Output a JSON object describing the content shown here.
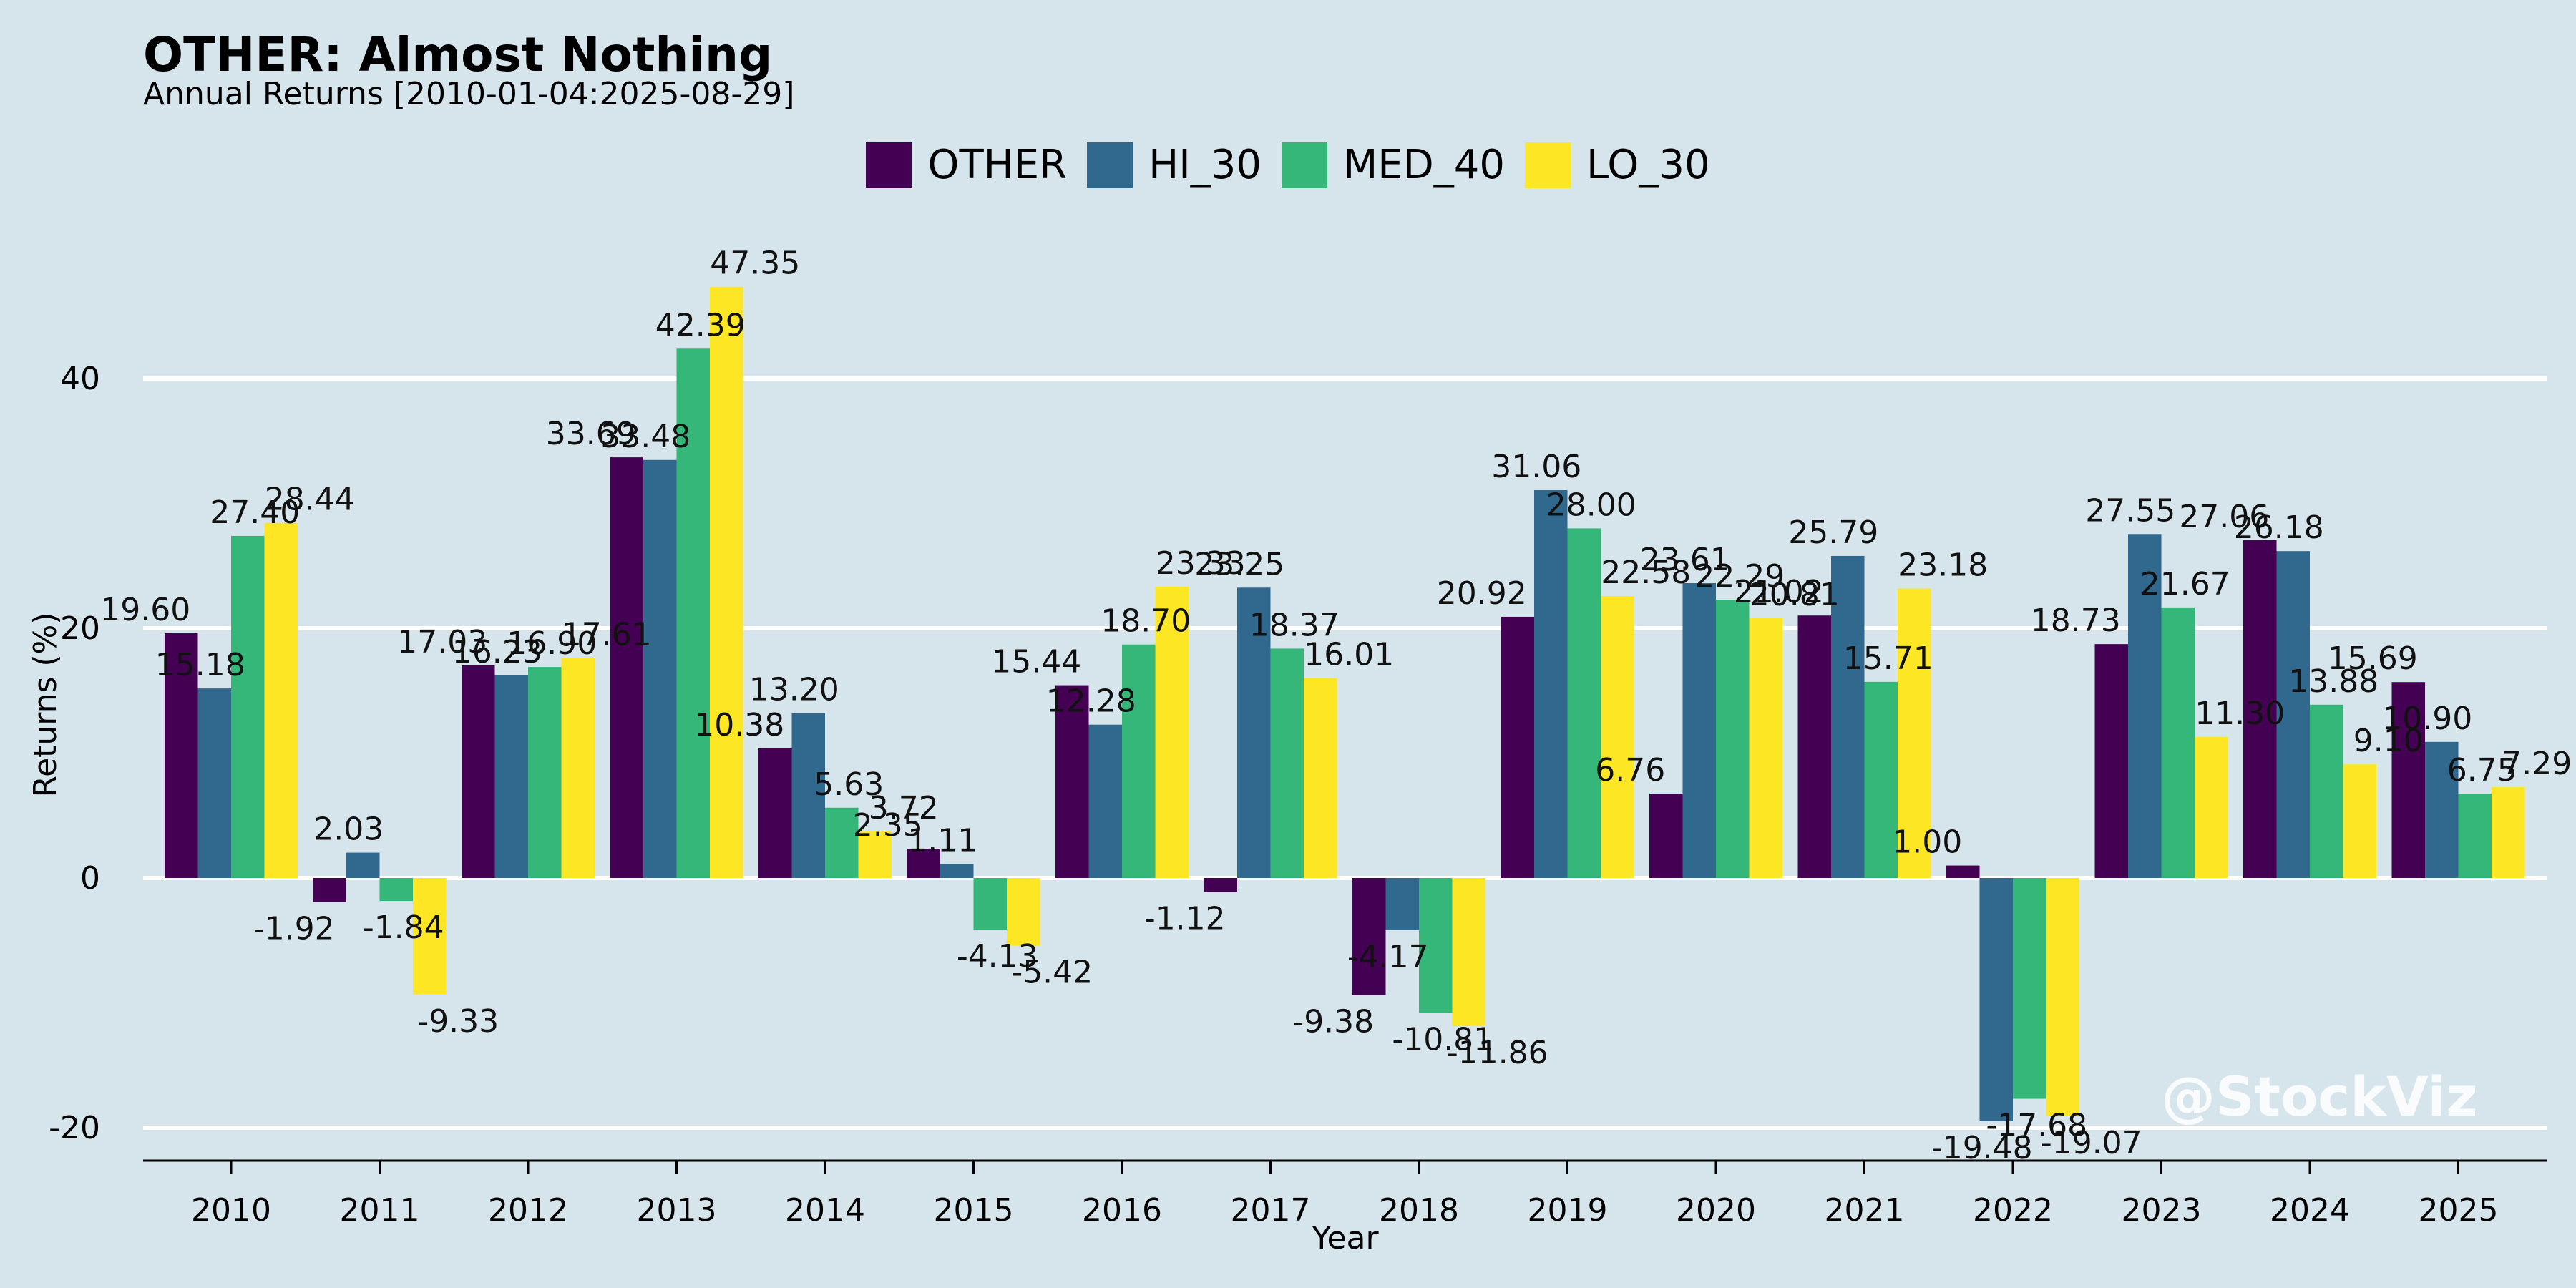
{
  "title": "OTHER: Almost Nothing",
  "subtitle": "Annual Returns [2010-01-04:2025-08-29]",
  "watermark": "@StockViz",
  "chart_data": {
    "type": "bar",
    "xlabel": "Year",
    "ylabel": "Returns (%)",
    "ylim": [
      -23,
      55
    ],
    "yticks": [
      -20,
      0,
      20,
      40
    ],
    "grid": true,
    "legend_position": "top-center",
    "categories": [
      "2010",
      "2011",
      "2012",
      "2013",
      "2014",
      "2015",
      "2016",
      "2017",
      "2018",
      "2019",
      "2020",
      "2021",
      "2022",
      "2023",
      "2024",
      "2025"
    ],
    "series": [
      {
        "name": "OTHER",
        "color": "#440154",
        "values": [
          19.6,
          -1.92,
          17.03,
          33.69,
          10.38,
          2.35,
          15.44,
          -1.12,
          -9.38,
          20.92,
          6.76,
          21.02,
          1.0,
          18.73,
          27.06,
          15.69
        ]
      },
      {
        "name": "HI_30",
        "color": "#31688e",
        "values": [
          15.18,
          2.03,
          16.23,
          33.48,
          13.2,
          1.11,
          12.28,
          23.25,
          -4.17,
          31.06,
          23.61,
          25.79,
          -19.48,
          27.55,
          26.18,
          10.9
        ]
      },
      {
        "name": "MED_40",
        "color": "#35b779",
        "values": [
          27.4,
          -1.84,
          16.9,
          42.39,
          5.63,
          -4.13,
          18.7,
          18.37,
          -10.81,
          28.0,
          22.29,
          15.71,
          -17.68,
          21.67,
          13.88,
          6.75
        ]
      },
      {
        "name": "LO_30",
        "color": "#fde725",
        "values": [
          28.44,
          -9.33,
          17.61,
          47.35,
          3.72,
          -5.42,
          23.33,
          16.01,
          -11.86,
          22.58,
          20.81,
          23.18,
          -19.07,
          11.3,
          9.1,
          7.29
        ]
      }
    ],
    "data_labels": [
      [
        "19.60",
        "-1.92",
        "17.03",
        "33.69",
        "10.38",
        "2.35",
        "15.44",
        "-1.12",
        "-9.38",
        "20.92",
        "6.76",
        "21.02",
        "1.00",
        "18.73",
        "27.06",
        "15.69"
      ],
      [
        "15.18",
        "2.03",
        "16.23",
        "33.48",
        "13.20",
        "1.11",
        "12.28",
        "23.25",
        "-4.17",
        "31.06",
        "23.61",
        "25.79",
        "-19.48",
        "27.55",
        "26.18",
        "10.90"
      ],
      [
        "27.40",
        "-1.84",
        "16.90",
        "42.39",
        "5.63",
        "-4.13",
        "18.70",
        "18.37",
        "-10.81",
        "28.00",
        "22.29",
        "15.71",
        "-17.68",
        "21.67",
        "13.88",
        "6.75"
      ],
      [
        "28.44",
        "-9.33",
        "17.61",
        "47.35",
        "3.72",
        "-5.42",
        "23.33",
        "16.01",
        "-11.86",
        "22.58",
        "20.81",
        "23.18",
        "-19.07",
        "11.30",
        "9.10",
        "7.29"
      ]
    ]
  }
}
